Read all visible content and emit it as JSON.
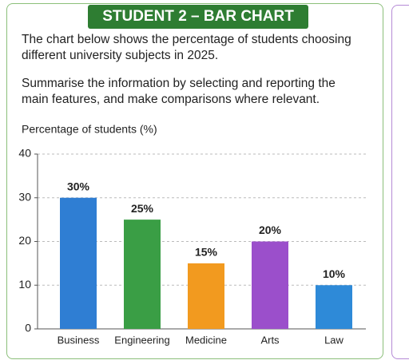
{
  "header": {
    "title": "STUDENT 2 – BAR CHART"
  },
  "prompt": [
    "The chart below shows the percentage of students choosing different university subjects in 2025.",
    "Summarise the information by selecting and reporting the main features, and make comparisons where relevant."
  ],
  "chart_data": {
    "type": "bar",
    "y_label": "Percentage of students (%)",
    "categories": [
      "Business",
      "Engineering",
      "Medicine",
      "Arts",
      "Law"
    ],
    "values": [
      30,
      25,
      15,
      20,
      10
    ],
    "value_labels": [
      "30%",
      "25%",
      "15%",
      "20%",
      "10%"
    ],
    "colors": [
      "#2f7ed3",
      "#3a9e45",
      "#f29a1f",
      "#9b4fcb",
      "#2e8ad8"
    ],
    "ylim": [
      0,
      40
    ],
    "yticks": [
      0,
      10,
      20,
      30,
      40
    ],
    "grid": true
  }
}
